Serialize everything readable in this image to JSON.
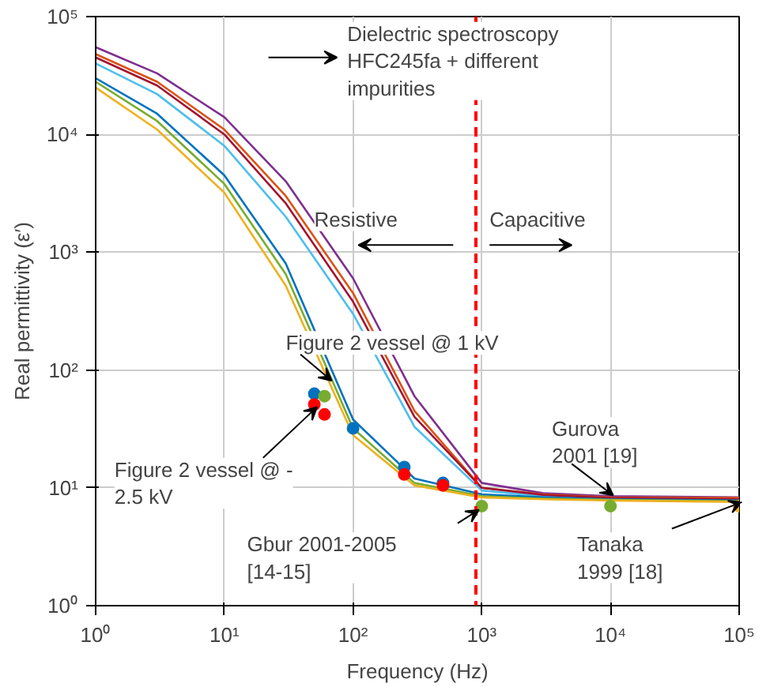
{
  "chart_data": {
    "type": "line",
    "xlabel": "Frequency (Hz)",
    "ylabel": "Real permittivity (ε′)",
    "log": "xy",
    "grid": true,
    "marker": "none",
    "line_style": "solid",
    "x": [
      1,
      3,
      10,
      30,
      100,
      300,
      1000,
      3000,
      10000,
      100000
    ],
    "xlim": [
      1,
      100000
    ],
    "ylim": [
      1,
      100000
    ],
    "xticks": [
      {
        "value": 1,
        "label": "10⁰"
      },
      {
        "value": 10,
        "label": "10¹"
      },
      {
        "value": 100,
        "label": "10²"
      },
      {
        "value": 1000,
        "label": "10³"
      },
      {
        "value": 10000,
        "label": "10⁴"
      },
      {
        "value": 100000,
        "label": "10⁵"
      }
    ],
    "yticks": [
      {
        "value": 1,
        "label": "10⁰"
      },
      {
        "value": 10,
        "label": "10¹"
      },
      {
        "value": 100,
        "label": "10²"
      },
      {
        "value": 1000,
        "label": "10³"
      },
      {
        "value": 10000,
        "label": "10⁴"
      },
      {
        "value": 100000,
        "label": "10⁵"
      }
    ],
    "series": [
      {
        "color": "#7e2f8e",
        "values": [
          55000,
          33000,
          14000,
          4000,
          600,
          60,
          11,
          9,
          8.5,
          8.3
        ]
      },
      {
        "color": "#d95319",
        "values": [
          48000,
          28000,
          11000,
          3000,
          450,
          45,
          10,
          8.8,
          8.3,
          8.2
        ]
      },
      {
        "color": "#4dbeee",
        "values": [
          40000,
          22000,
          8000,
          2000,
          300,
          33,
          9.5,
          8.5,
          8,
          7.9
        ]
      },
      {
        "color": "#a2142f",
        "values": [
          45000,
          26000,
          10000,
          2600,
          380,
          40,
          10,
          8.7,
          8.2,
          8
        ]
      },
      {
        "color": "#0072bd",
        "values": [
          30000,
          15000,
          4500,
          800,
          38,
          12,
          8.8,
          8.3,
          8,
          7.8
        ]
      },
      {
        "color": "#77ac30",
        "values": [
          28000,
          13000,
          3800,
          650,
          32,
          11,
          8.5,
          8.1,
          7.9,
          7.7
        ]
      },
      {
        "color": "#edb120",
        "values": [
          25000,
          11000,
          3200,
          520,
          28,
          10.5,
          8.3,
          8,
          7.8,
          7.6
        ]
      },
      {
        "type": "scatter",
        "marker": "circle",
        "color": "#0072bd",
        "x": [
          50,
          100,
          250,
          500
        ],
        "values": [
          63,
          32,
          15,
          11
        ]
      },
      {
        "type": "scatter",
        "marker": "circle",
        "color": "#ff0000",
        "x": [
          50,
          60,
          250,
          500
        ],
        "values": [
          51,
          42,
          13,
          10.5
        ]
      },
      {
        "type": "scatter",
        "marker": "circle",
        "color": "#77ac30",
        "x": [
          60,
          1000,
          10000
        ],
        "values": [
          60,
          7,
          7
        ]
      },
      {
        "type": "scatter",
        "marker": "circle",
        "color": "#edb120",
        "x": [
          100000
        ],
        "values": [
          7
        ]
      }
    ],
    "ref_lines": [
      {
        "axis": "x",
        "value": 900,
        "color": "#ff0000",
        "line_style": "dashed"
      }
    ],
    "annotations": [
      "Dielectric spectroscopy\nHFC245fa + different\nimpurities",
      "Resistive",
      "Capacitive",
      {
        "text": "Figure 2 vessel @ 1 kV",
        "x": 65,
        "y": 75
      },
      {
        "text": "Figure 2 vessel @ -\n2.5 kV",
        "x": 50,
        "y": 45
      },
      "Gbur 2001-2005\n[14-15]",
      {
        "text": "Gurova\n2001 [19]",
        "x": 10000,
        "y": 8
      },
      {
        "text": "Tanaka\n1999 [18]",
        "x": 100000,
        "y": 7
      }
    ]
  }
}
